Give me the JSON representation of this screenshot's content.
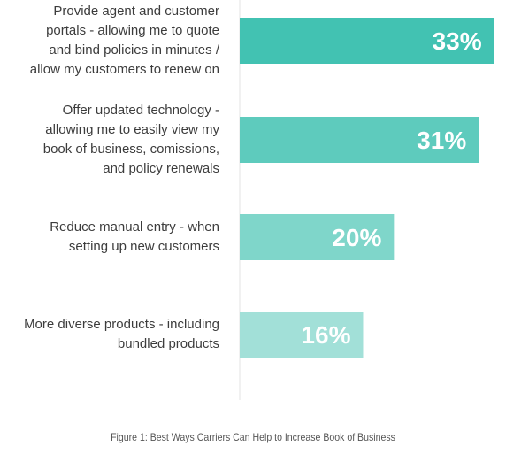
{
  "chart_data": {
    "type": "bar",
    "orientation": "horizontal",
    "categories": [
      "Provide agent and customer\nportals - allowing me to quote\nand bind policies in minutes /\nallow my customers to renew on",
      "Offer updated technology -\nallowing me to easily view my\nbook of business, comissions,\nand policy renewals",
      "Reduce manual entry - when\nsetting up new customers",
      "More diverse  products - including\nbundled products"
    ],
    "values": [
      33,
      31,
      20,
      16
    ],
    "value_labels": [
      "33%",
      "31%",
      "20%",
      "16%"
    ],
    "colors": [
      "#42c2b2",
      "#5ecbbd",
      "#7fd6ca",
      "#a2e0d8"
    ],
    "xlim": [
      0,
      34.3
    ],
    "grid": false
  },
  "caption": "Figure 1: Best Ways Carriers Can Help to Increase Book of Business"
}
